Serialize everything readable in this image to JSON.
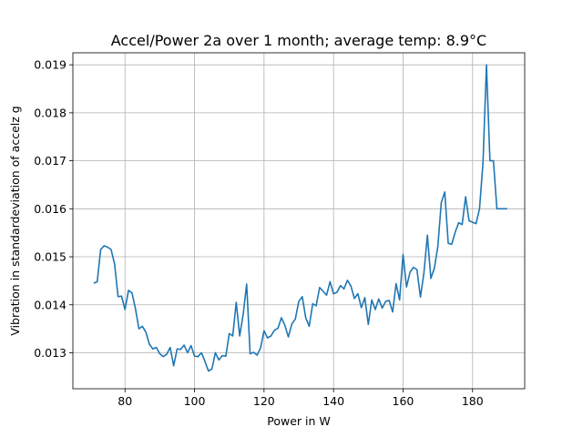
{
  "chart_data": {
    "type": "line",
    "title": "Accel/Power 2a over 1 month; average temp: 8.9°C",
    "xlabel": "Power in W",
    "ylabel": "Vibration in standardeviation of accelz g",
    "xlim": [
      65,
      195
    ],
    "ylim": [
      0.01225,
      0.01925
    ],
    "xticks": [
      80,
      100,
      120,
      140,
      160,
      180
    ],
    "xtick_labels": [
      "80",
      "100",
      "120",
      "140",
      "160",
      "180"
    ],
    "yticks": [
      0.013,
      0.014,
      0.015,
      0.016,
      0.017,
      0.018,
      0.019
    ],
    "ytick_labels": [
      "0.013",
      "0.014",
      "0.015",
      "0.016",
      "0.017",
      "0.018",
      "0.019"
    ],
    "grid": true,
    "line_color": "#1f77b4",
    "series": [
      {
        "x": [
          71,
          72,
          73,
          74,
          75,
          76,
          77,
          78,
          79,
          80,
          81,
          82,
          83,
          84,
          85,
          86,
          87,
          88,
          89,
          90,
          91,
          92,
          93,
          94,
          95,
          96,
          97,
          98,
          99,
          100,
          101,
          102,
          103,
          104,
          105,
          106,
          107,
          108,
          109,
          110,
          111,
          112,
          113,
          114,
          115,
          116,
          117,
          118,
          119,
          120,
          121,
          122,
          123,
          124,
          125,
          126,
          127,
          128,
          129,
          130,
          131,
          132,
          133,
          134,
          135,
          136,
          137,
          138,
          139,
          140,
          141,
          142,
          143,
          144,
          145,
          146,
          147,
          148,
          149,
          150,
          151,
          152,
          153,
          154,
          155,
          156,
          157,
          158,
          159,
          160,
          161,
          162,
          163,
          164,
          165,
          166,
          167,
          168,
          169,
          170,
          171,
          172,
          173,
          174,
          175,
          176,
          177,
          178,
          179,
          180,
          181,
          182,
          183,
          184,
          185,
          186,
          187,
          188,
          189,
          190
        ],
        "values": [
          0.01445,
          0.01448,
          0.01515,
          0.01523,
          0.0152,
          0.01515,
          0.01485,
          0.01417,
          0.01418,
          0.0139,
          0.0143,
          0.01425,
          0.01392,
          0.0135,
          0.01355,
          0.01343,
          0.01318,
          0.01308,
          0.01311,
          0.01298,
          0.01292,
          0.01297,
          0.01311,
          0.01273,
          0.01308,
          0.01307,
          0.01316,
          0.013,
          0.01315,
          0.01293,
          0.01292,
          0.013,
          0.01282,
          0.01262,
          0.01266,
          0.013,
          0.01285,
          0.01294,
          0.01293,
          0.0134,
          0.01335,
          0.01405,
          0.01335,
          0.0138,
          0.01443,
          0.01298,
          0.01301,
          0.01295,
          0.0131,
          0.01346,
          0.01331,
          0.01335,
          0.01347,
          0.01351,
          0.01373,
          0.01357,
          0.01333,
          0.0136,
          0.0137,
          0.01407,
          0.01417,
          0.01373,
          0.01355,
          0.01402,
          0.01398,
          0.01436,
          0.01428,
          0.0142,
          0.01448,
          0.01423,
          0.01426,
          0.0144,
          0.01433,
          0.01451,
          0.01439,
          0.01413,
          0.01423,
          0.01394,
          0.01415,
          0.01359,
          0.0141,
          0.0139,
          0.01412,
          0.01393,
          0.01407,
          0.01409,
          0.01385,
          0.01444,
          0.0141,
          0.01505,
          0.01437,
          0.01468,
          0.01478,
          0.01473,
          0.01416,
          0.01466,
          0.01545,
          0.01455,
          0.01476,
          0.01521,
          0.01613,
          0.01635,
          0.01528,
          0.01526,
          0.01551,
          0.01571,
          0.01567,
          0.01625,
          0.01575,
          0.01572,
          0.01569,
          0.016,
          0.01696,
          0.019,
          0.017,
          0.017,
          0.016,
          0.016,
          0.016,
          0.016
        ]
      }
    ]
  }
}
